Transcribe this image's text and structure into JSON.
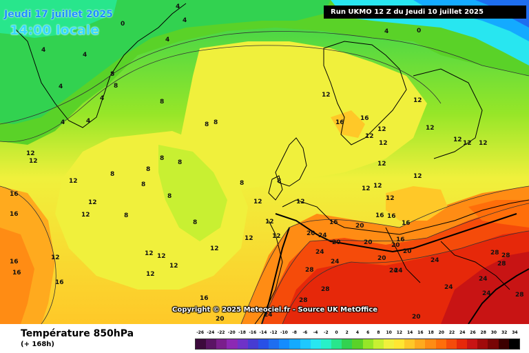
{
  "header": {
    "date_line": "Jeudi 17 juillet 2025",
    "time_line": "14:00 locale",
    "run_line": "Run UKMO 12 Z du Jeudi 10 juillet 2025"
  },
  "copyright": "Copyright © 2025 Meteociel.fr - Source UK MetOffice",
  "footer": {
    "field_title": "Température 850hPa",
    "lead_time": "(+ 168h)"
  },
  "legend": {
    "ticks": [
      "-26",
      "-24",
      "-22",
      "-20",
      "-18",
      "-16",
      "-14",
      "-12",
      "-10",
      "-8",
      "-6",
      "-4",
      "-2",
      "0",
      "2",
      "4",
      "6",
      "8",
      "10",
      "12",
      "14",
      "16",
      "18",
      "20",
      "22",
      "24",
      "26",
      "28",
      "30",
      "32",
      "34"
    ],
    "colors": [
      "#3c0a3c",
      "#5a1464",
      "#7a1e8c",
      "#8c28b4",
      "#6e32c8",
      "#463cd2",
      "#2850e6",
      "#1e6ef0",
      "#148cff",
      "#14aaff",
      "#1ec8ff",
      "#28e6f0",
      "#28f0c8",
      "#28e68c",
      "#32d250",
      "#5ad228",
      "#96e628",
      "#c8f032",
      "#f0f03c",
      "#ffe632",
      "#ffc828",
      "#ffaa1e",
      "#ff8c14",
      "#ff6e0a",
      "#f54b0a",
      "#e6280a",
      "#c81414",
      "#a00a0a",
      "#780505",
      "#3c0000",
      "#000000"
    ]
  },
  "isotherm_labels": [
    "0",
    "4",
    "8",
    "12",
    "16",
    "20",
    "24",
    "28"
  ]
}
